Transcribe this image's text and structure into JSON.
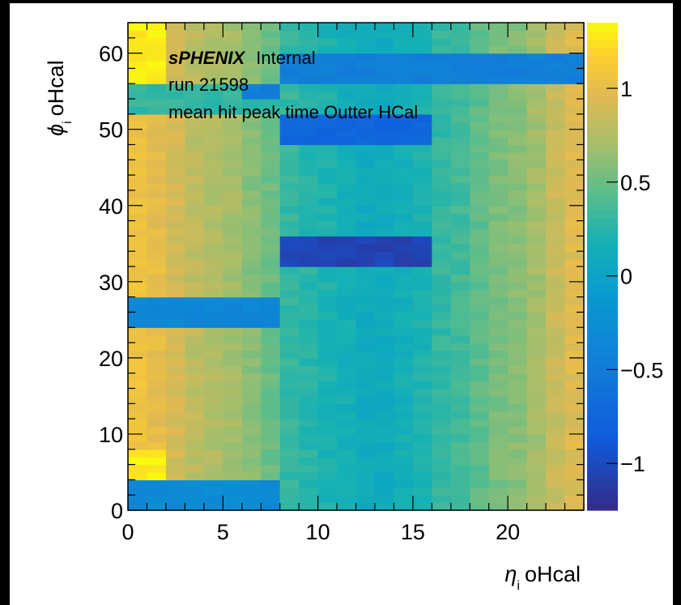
{
  "chart_data": {
    "type": "heatmap",
    "xlabel": "η_i oHcal",
    "xlabel_symbol": "η",
    "xlabel_sub": "i",
    "xlabel_text": "oHcal",
    "ylabel": "ϕ_i oHcal",
    "ylabel_symbol": "ϕ",
    "ylabel_sub": "i",
    "ylabel_text": "oHcal",
    "xlim": [
      0,
      24
    ],
    "ylim": [
      0,
      64
    ],
    "zlim": [
      -1.25,
      1.35
    ],
    "x_ticks": [
      0,
      5,
      10,
      15,
      20
    ],
    "y_ticks": [
      0,
      10,
      20,
      30,
      40,
      50,
      60
    ],
    "z_ticks": [
      -1,
      -0.5,
      0,
      0.5,
      1
    ],
    "x_tick_labels": [
      "0",
      "5",
      "10",
      "15",
      "20"
    ],
    "y_tick_labels": [
      "0",
      "10",
      "20",
      "30",
      "40",
      "50",
      "60"
    ],
    "z_tick_labels": [
      "−1",
      "−0.5",
      "0",
      "0.5",
      "1"
    ],
    "colormap": "parula",
    "annotations": {
      "experiment": "sPHENIX",
      "status": "Internal",
      "run": "run 21598",
      "description": "mean hit peak time Outter HCal"
    },
    "nx": 24,
    "ny": 64,
    "column_values": [
      1.05,
      1.0,
      0.9,
      0.8,
      0.75,
      0.7,
      0.6,
      0.5,
      0.3,
      0.25,
      0.2,
      0.15,
      0.1,
      0.1,
      0.15,
      0.2,
      0.3,
      0.35,
      0.45,
      0.55,
      0.6,
      0.7,
      0.85,
      0.95
    ],
    "regions": [
      {
        "x": [
          8,
          16
        ],
        "y": [
          48,
          52
        ],
        "value": -0.75
      },
      {
        "x": [
          8,
          24
        ],
        "y": [
          56,
          60
        ],
        "value": -0.45
      },
      {
        "x": [
          8,
          16
        ],
        "y": [
          32,
          36
        ],
        "value": -1.05
      },
      {
        "x": [
          0,
          8
        ],
        "y": [
          24,
          28
        ],
        "value": -0.35
      },
      {
        "x": [
          0,
          8
        ],
        "y": [
          0,
          4
        ],
        "value": -0.3
      },
      {
        "x": [
          0,
          8
        ],
        "y": [
          52,
          56
        ],
        "value": 0.3
      },
      {
        "x": [
          6,
          8
        ],
        "y": [
          54,
          56
        ],
        "value": -0.45
      },
      {
        "x": [
          0,
          2
        ],
        "y": [
          56,
          64
        ],
        "value": 1.3
      },
      {
        "x": [
          0,
          2
        ],
        "y": [
          4,
          8
        ],
        "value": 1.3
      }
    ]
  }
}
